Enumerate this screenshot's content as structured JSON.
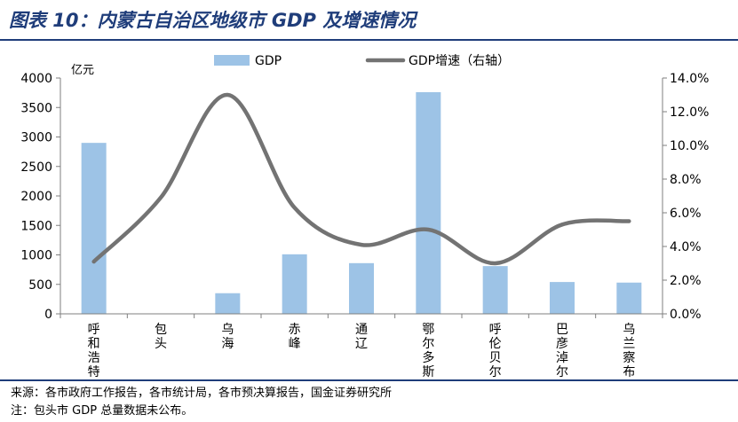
{
  "figure": {
    "title": "图表 10：内蒙古自治区地级市 GDP 及增速情况",
    "source": "来源：各市政府工作报告，各市统计局，各市预决算报告，国金证券研究所",
    "note": "注：包头市 GDP 总量数据未公布。"
  },
  "chart_data": {
    "type": "bar+line",
    "categories": [
      "呼和浩特",
      "包头",
      "乌海",
      "赤峰",
      "通辽",
      "鄂尔多斯",
      "呼伦贝尔",
      "巴彦淖尔",
      "乌兰察布"
    ],
    "series": [
      {
        "name": "GDP",
        "type": "bar",
        "axis": "left",
        "color": "#9dc3e6",
        "values": [
          2900,
          null,
          350,
          1010,
          860,
          3760,
          810,
          540,
          530
        ]
      },
      {
        "name": "GDP增速（右轴）",
        "type": "line",
        "axis": "right",
        "color": "#737373",
        "values": [
          3.1,
          6.9,
          13.0,
          6.3,
          4.1,
          5.0,
          3.0,
          5.3,
          5.5
        ]
      }
    ],
    "ylabel": "亿元",
    "ylim": [
      0,
      4000
    ],
    "yticks": [
      "0",
      "500",
      "1000",
      "1500",
      "2000",
      "2500",
      "3000",
      "3500",
      "4000"
    ],
    "y2lim": [
      0,
      14
    ],
    "y2ticks": [
      "0.0%",
      "2.0%",
      "4.0%",
      "6.0%",
      "8.0%",
      "10.0%",
      "12.0%",
      "14.0%"
    ],
    "legend_position": "top",
    "grid": false
  }
}
